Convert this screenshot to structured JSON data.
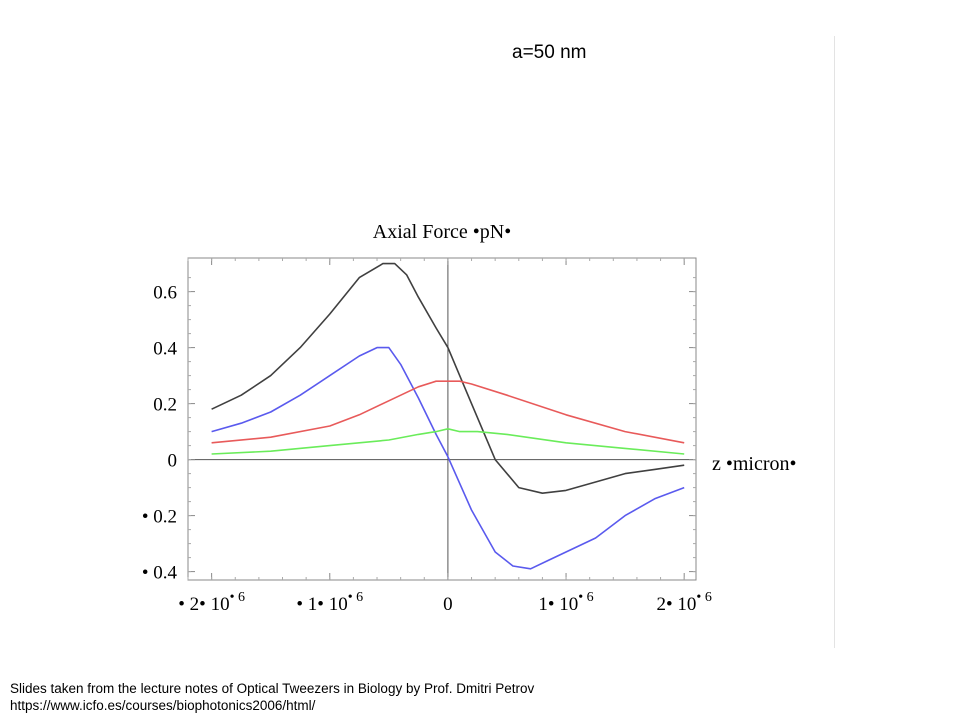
{
  "slide": {
    "header": "a=50 nm",
    "credit_line1": "Slides taken from the lecture notes of Optical Tweezers in Biology by Prof. Dmitri Petrov",
    "credit_line2": "https://www.icfo.es/courses/biophotonics2006/html/"
  },
  "chart_data": {
    "type": "line",
    "title": "Axial Force •pN•",
    "xlabel": "z •micron•",
    "ylabel": "",
    "xlim": [
      -2.2e-06,
      2.1e-06
    ],
    "ylim": [
      -0.43,
      0.72
    ],
    "y_ticks": [
      {
        "value": -0.4,
        "label": "• 0.4"
      },
      {
        "value": -0.2,
        "label": "• 0.2"
      },
      {
        "value": 0,
        "label": "0"
      },
      {
        "value": 0.2,
        "label": "0.2"
      },
      {
        "value": 0.4,
        "label": "0.4"
      },
      {
        "value": 0.6,
        "label": "0.6"
      }
    ],
    "x_ticks": [
      {
        "value": -2e-06,
        "label": "• 2• 10",
        "exp": "• 6"
      },
      {
        "value": -1e-06,
        "label": "• 1• 10",
        "exp": "• 6"
      },
      {
        "value": 0,
        "label": "0",
        "exp": ""
      },
      {
        "value": 1e-06,
        "label": "1• 10",
        "exp": "• 6"
      },
      {
        "value": 2e-06,
        "label": "2• 10",
        "exp": "• 6"
      }
    ],
    "grid": false,
    "series": [
      {
        "color": "#404040",
        "x": [
          -2e-06,
          -1.75e-06,
          -1.5e-06,
          -1.25e-06,
          -1e-06,
          -7.5e-07,
          -5.5e-07,
          -4.5e-07,
          -3.5e-07,
          -2.5e-07,
          -1e-07,
          0,
          2e-07,
          4e-07,
          6e-07,
          8e-07,
          1e-06,
          1.25e-06,
          1.5e-06,
          1.75e-06,
          2e-06
        ],
        "y": [
          0.18,
          0.23,
          0.3,
          0.4,
          0.52,
          0.65,
          0.7,
          0.7,
          0.66,
          0.58,
          0.47,
          0.4,
          0.2,
          0.0,
          -0.1,
          -0.12,
          -0.11,
          -0.08,
          -0.05,
          -0.035,
          -0.02
        ]
      },
      {
        "color": "#5a5aee",
        "x": [
          -2e-06,
          -1.75e-06,
          -1.5e-06,
          -1.25e-06,
          -1e-06,
          -7.5e-07,
          -6e-07,
          -5e-07,
          -4e-07,
          -2.5e-07,
          -1e-07,
          0,
          2e-07,
          4e-07,
          5.5e-07,
          7e-07,
          8.5e-07,
          1e-06,
          1.25e-06,
          1.5e-06,
          1.75e-06,
          2e-06
        ],
        "y": [
          0.1,
          0.13,
          0.17,
          0.23,
          0.3,
          0.37,
          0.4,
          0.4,
          0.34,
          0.22,
          0.09,
          0.01,
          -0.18,
          -0.33,
          -0.38,
          -0.39,
          -0.36,
          -0.33,
          -0.28,
          -0.2,
          -0.14,
          -0.1
        ]
      },
      {
        "color": "#e85a5a",
        "x": [
          -2e-06,
          -1.5e-06,
          -1e-06,
          -7.5e-07,
          -5e-07,
          -2.5e-07,
          -1e-07,
          0,
          1e-07,
          2e-07,
          5e-07,
          1e-06,
          1.5e-06,
          2e-06
        ],
        "y": [
          0.06,
          0.08,
          0.12,
          0.16,
          0.21,
          0.26,
          0.28,
          0.28,
          0.28,
          0.27,
          0.23,
          0.16,
          0.1,
          0.06
        ]
      },
      {
        "color": "#6aec5a",
        "x": [
          -2e-06,
          -1.5e-06,
          -1e-06,
          -5e-07,
          -2.5e-07,
          -1e-07,
          0,
          1e-07,
          2.5e-07,
          5e-07,
          1e-06,
          1.5e-06,
          2e-06
        ],
        "y": [
          0.02,
          0.03,
          0.05,
          0.07,
          0.09,
          0.1,
          0.11,
          0.1,
          0.1,
          0.09,
          0.06,
          0.04,
          0.02
        ]
      }
    ]
  }
}
